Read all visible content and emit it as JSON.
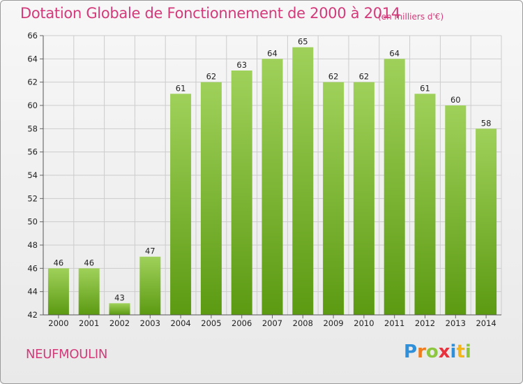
{
  "chart_data": {
    "type": "bar",
    "title": "Dotation Globale de Fonctionnement de 2000 à 2014",
    "subtitle": "(en milliers d'€)",
    "categories": [
      "2000",
      "2001",
      "2002",
      "2003",
      "2004",
      "2005",
      "2006",
      "2007",
      "2008",
      "2009",
      "2010",
      "2011",
      "2012",
      "2013",
      "2014"
    ],
    "values": [
      46,
      46,
      43,
      47,
      61,
      62,
      63,
      64,
      65,
      62,
      62,
      64,
      61,
      60,
      58
    ],
    "xlabel": "",
    "ylabel": "",
    "ylim": [
      42,
      66
    ],
    "yticks": [
      42,
      44,
      46,
      48,
      50,
      52,
      54,
      56,
      58,
      60,
      62,
      64,
      66
    ],
    "grid": true,
    "bar_color_top": "#9fd15a",
    "bar_color_bottom": "#5c9a12"
  },
  "location": "NEUFMOULIN",
  "logo": {
    "letters": [
      "P",
      "r",
      "o",
      "x",
      "i",
      "t",
      "i"
    ]
  },
  "colors": {
    "accent": "#d23a7a",
    "grid": "#cccccc"
  }
}
